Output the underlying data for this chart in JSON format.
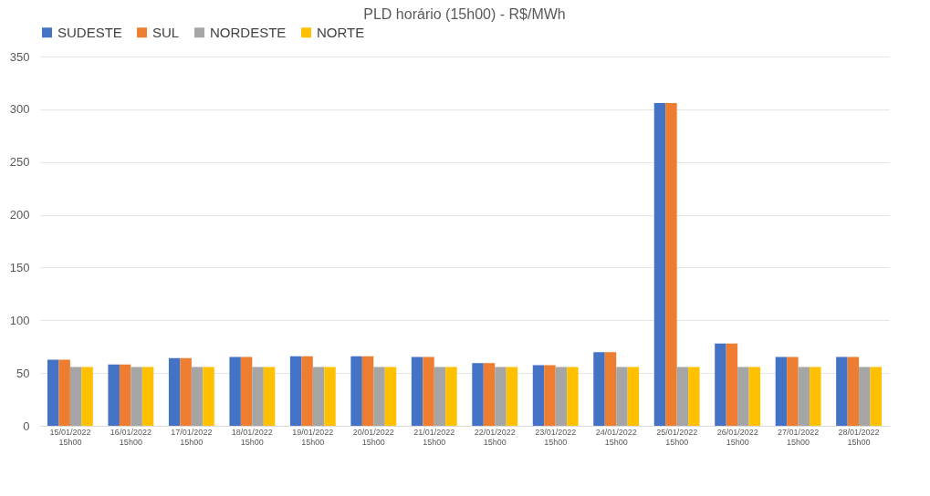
{
  "chart_data": {
    "type": "bar",
    "title": "PLD horário (15h00) - R$/MWh",
    "categories": [
      "15/01/2022 15h00",
      "16/01/2022 15h00",
      "17/01/2022 15h00",
      "18/01/2022 15h00",
      "19/01/2022 15h00",
      "20/01/2022 15h00",
      "21/01/2022 15h00",
      "22/01/2022 15h00",
      "23/01/2022 15h00",
      "24/01/2022 15h00",
      "25/01/2022 15h00",
      "26/01/2022 15h00",
      "27/01/2022 15h00",
      "28/01/2022 15h00"
    ],
    "series": [
      {
        "name": "SUDESTE",
        "color": "#4472c4",
        "values": [
          62.6,
          58.1,
          64.1,
          65.2,
          66.0,
          66.0,
          65.2,
          59.4,
          57.5,
          69.7,
          306,
          78.0,
          65.2,
          65.2
        ]
      },
      {
        "name": "SUL",
        "color": "#ed7d31",
        "values": [
          62.6,
          58.1,
          64.1,
          65.2,
          66.0,
          66.0,
          65.2,
          59.4,
          57.5,
          69.7,
          306,
          78.0,
          65.2,
          65.2
        ]
      },
      {
        "name": "NORDESTE",
        "color": "#a5a5a5",
        "values": [
          55.7,
          55.7,
          55.7,
          55.7,
          55.7,
          55.7,
          55.7,
          55.7,
          55.7,
          55.7,
          55.7,
          55.7,
          55.7,
          55.7
        ]
      },
      {
        "name": "NORTE",
        "color": "#ffc000",
        "values": [
          55.7,
          55.7,
          55.7,
          55.7,
          55.7,
          55.7,
          55.7,
          55.7,
          55.7,
          55.7,
          55.7,
          55.7,
          55.7,
          55.7
        ]
      }
    ],
    "ylim": [
      0,
      350
    ],
    "yticks": [
      0,
      50,
      100,
      150,
      200,
      250,
      300,
      350
    ],
    "grid": "y",
    "legend": "top"
  }
}
